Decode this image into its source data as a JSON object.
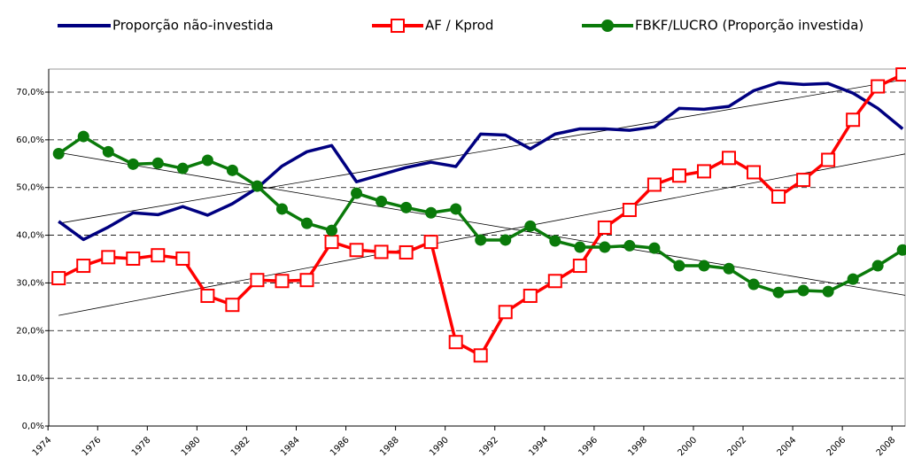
{
  "chart_data": {
    "type": "line",
    "x": [
      1974,
      1975,
      1976,
      1977,
      1978,
      1979,
      1980,
      1981,
      1982,
      1983,
      1984,
      1985,
      1986,
      1987,
      1988,
      1989,
      1990,
      1991,
      1992,
      1993,
      1994,
      1995,
      1996,
      1997,
      1998,
      1999,
      2000,
      2001,
      2002,
      2003,
      2004,
      2005,
      2006,
      2007,
      2008
    ],
    "series": [
      {
        "name": "Proporção não-investida",
        "color": "#000080",
        "marker": "none",
        "values": [
          42.9,
          39.1,
          41.7,
          44.7,
          44.3,
          46.0,
          44.2,
          46.6,
          49.9,
          54.5,
          57.5,
          58.8,
          51.2,
          52.7,
          54.2,
          55.3,
          54.4,
          61.2,
          61.0,
          58.1,
          61.2,
          62.3,
          62.3,
          62.0,
          62.7,
          66.6,
          66.4,
          67.0,
          70.3,
          72.0,
          71.6,
          71.8,
          69.8,
          66.6,
          62.3
        ]
      },
      {
        "name": "AF / Kprod",
        "color": "#ff0000",
        "marker": "square",
        "values": [
          31.0,
          33.6,
          35.4,
          35.1,
          35.8,
          35.1,
          27.3,
          25.4,
          30.6,
          30.4,
          30.6,
          38.6,
          36.9,
          36.5,
          36.4,
          38.6,
          17.6,
          14.8,
          23.9,
          27.3,
          30.4,
          33.6,
          41.6,
          45.3,
          50.6,
          52.5,
          53.4,
          56.2,
          53.2,
          48.1,
          51.6,
          55.8,
          64.2,
          71.2,
          73.7
        ]
      },
      {
        "name": "FBKF/LUCRO (Proporção investida)",
        "color": "#0a7a0a",
        "marker": "circle",
        "values": [
          57.1,
          60.7,
          57.5,
          54.9,
          55.1,
          54.0,
          55.7,
          53.6,
          50.3,
          45.5,
          42.5,
          41.0,
          48.8,
          47.1,
          45.8,
          44.7,
          45.5,
          39.0,
          39.0,
          41.9,
          38.8,
          37.5,
          37.5,
          37.8,
          37.3,
          33.6,
          33.6,
          33.0,
          29.7,
          28.0,
          28.4,
          28.2,
          30.8,
          33.6,
          36.9
        ]
      }
    ],
    "xlim": [
      1973.6,
      2008.1
    ],
    "xticks": [
      1974,
      1976,
      1978,
      1980,
      1982,
      1984,
      1986,
      1988,
      1990,
      1992,
      1994,
      1996,
      1998,
      2000,
      2002,
      2004,
      2006,
      2008
    ],
    "ylim": [
      0,
      70
    ],
    "yticks": [
      {
        "value": 0,
        "label": "0,0%"
      },
      {
        "value": 10,
        "label": "10,0%"
      },
      {
        "value": 20,
        "label": "20,0%"
      },
      {
        "value": 30,
        "label": "30,0%"
      },
      {
        "value": 40,
        "label": "40,0%"
      },
      {
        "value": 50,
        "label": "50,0%"
      },
      {
        "value": 60,
        "label": "60,0%"
      },
      {
        "value": 70,
        "label": "70,0%"
      }
    ],
    "grid": true,
    "trendline": true,
    "legend": "top"
  }
}
